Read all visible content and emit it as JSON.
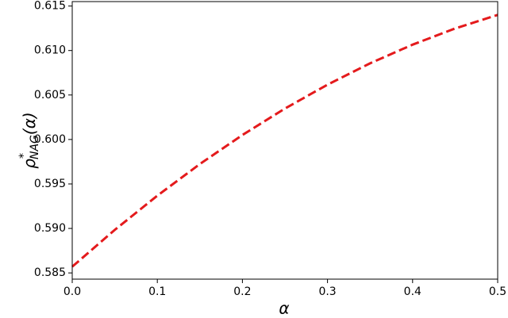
{
  "chart_data": {
    "type": "line",
    "xlabel": "α",
    "ylabel": [
      "ρ",
      "*",
      "NAG",
      "(α)"
    ],
    "x": [
      0,
      0.05,
      0.1,
      0.15,
      0.2,
      0.25,
      0.3,
      0.35,
      0.4,
      0.45,
      0.5
    ],
    "series": [
      {
        "color": "#e41a1c",
        "dashed": true,
        "values": [
          0.5857,
          0.58984,
          0.59368,
          0.59724,
          0.6005,
          0.60348,
          0.60616,
          0.60856,
          0.61066,
          0.61248,
          0.614
        ]
      }
    ],
    "xlim": [
      0,
      0.5
    ],
    "ylim": [
      0.5843,
      0.6155
    ],
    "xticks": [
      {
        "value": 0,
        "label": "0.0"
      },
      0.1,
      0.2,
      0.3,
      0.4,
      0.5
    ],
    "yticks": [
      0.585,
      {
        "value": 0.59,
        "label": "0.590"
      },
      0.595,
      {
        "value": 0.6,
        "label": "0.600"
      },
      0.605,
      {
        "value": 0.61,
        "label": "0.610"
      },
      0.615
    ]
  }
}
